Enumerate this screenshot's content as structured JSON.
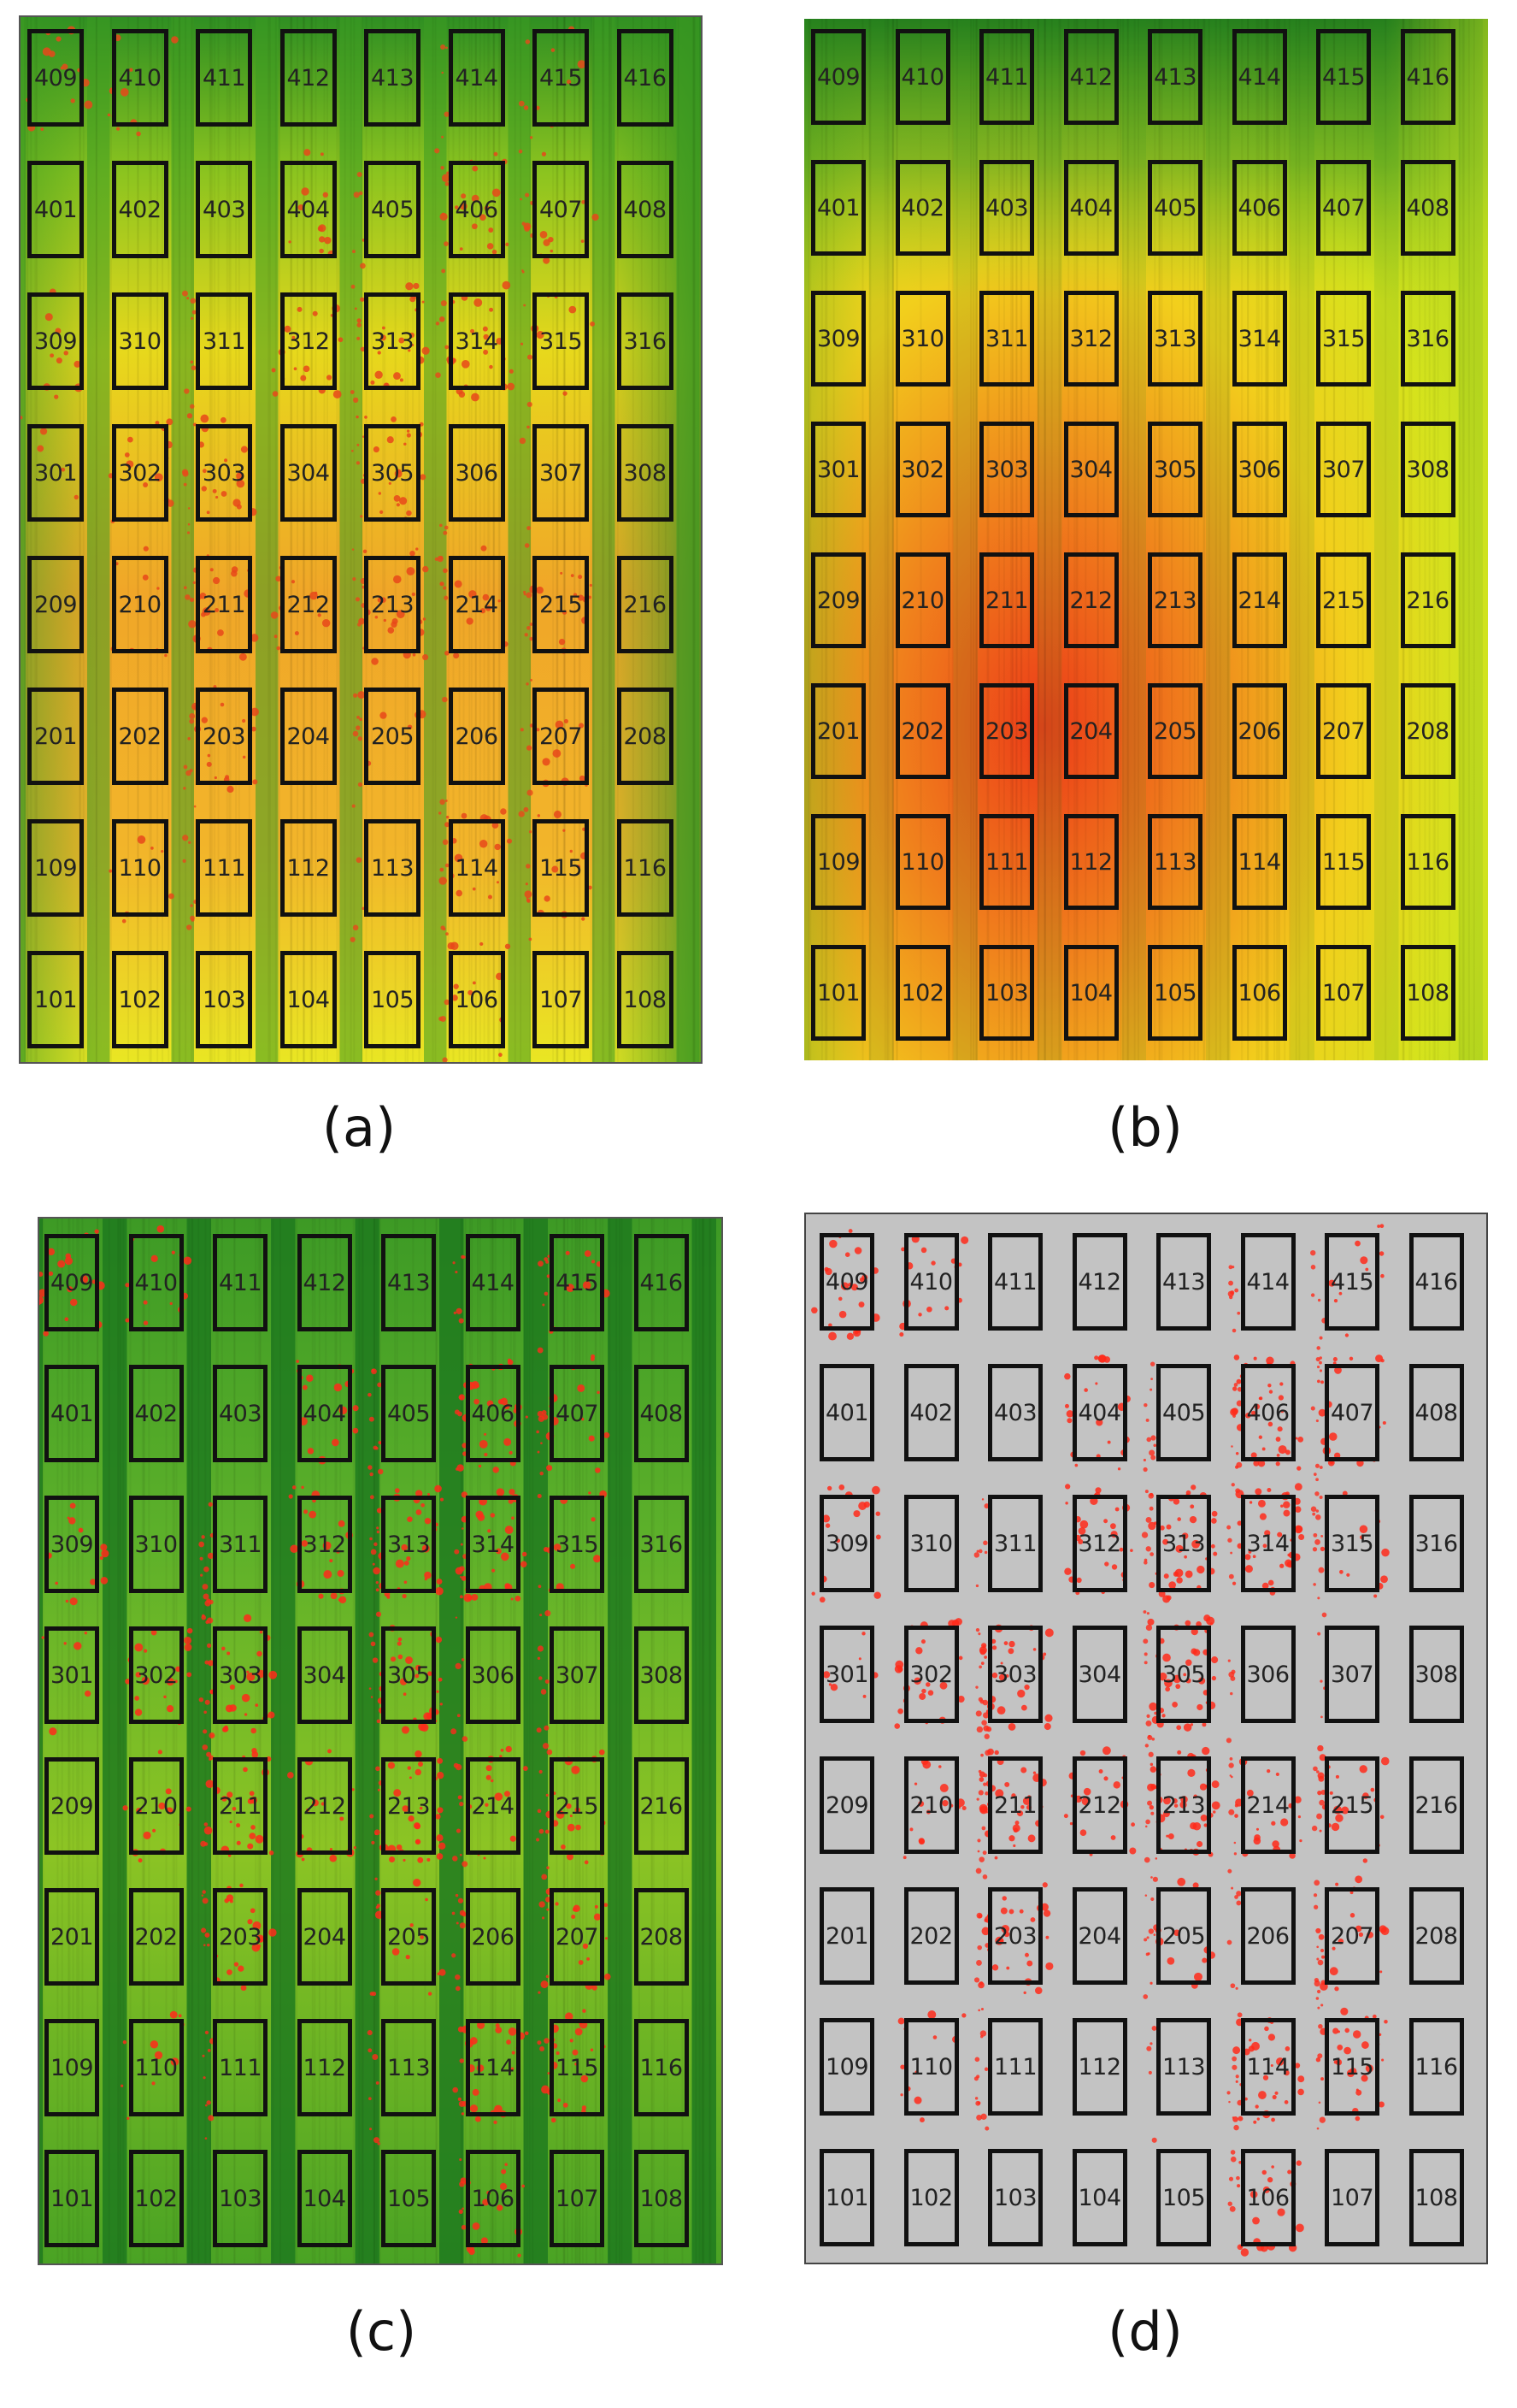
{
  "figure": {
    "plot_rows": [
      [
        "409",
        "410",
        "411",
        "412",
        "413",
        "414",
        "415",
        "416"
      ],
      [
        "401",
        "402",
        "403",
        "404",
        "405",
        "406",
        "407",
        "408"
      ],
      [
        "309",
        "310",
        "311",
        "312",
        "313",
        "314",
        "315",
        "316"
      ],
      [
        "301",
        "302",
        "303",
        "304",
        "305",
        "306",
        "307",
        "308"
      ],
      [
        "209",
        "210",
        "211",
        "212",
        "213",
        "214",
        "215",
        "216"
      ],
      [
        "201",
        "202",
        "203",
        "204",
        "205",
        "206",
        "207",
        "208"
      ],
      [
        "109",
        "110",
        "111",
        "112",
        "113",
        "114",
        "115",
        "116"
      ],
      [
        "101",
        "102",
        "103",
        "104",
        "105",
        "106",
        "107",
        "108"
      ]
    ],
    "panels": [
      {
        "id": "a",
        "caption": "(a)",
        "style": "ndvi-orange"
      },
      {
        "id": "b",
        "caption": "(b)",
        "style": "heat-orange"
      },
      {
        "id": "c",
        "caption": "(c)",
        "style": "green-yellow"
      },
      {
        "id": "d",
        "caption": "(d)",
        "style": "gray-red"
      }
    ],
    "colors": {
      "dark_green": "#1f7a1f",
      "green": "#4fa82a",
      "yellow_green": "#b9d81e",
      "yellow": "#f2ea1a",
      "orange": "#f0a11a",
      "red_orange": "#e8481a",
      "red": "#ff2a1a",
      "gray": "#c3c3c3",
      "border": "#111111"
    }
  }
}
